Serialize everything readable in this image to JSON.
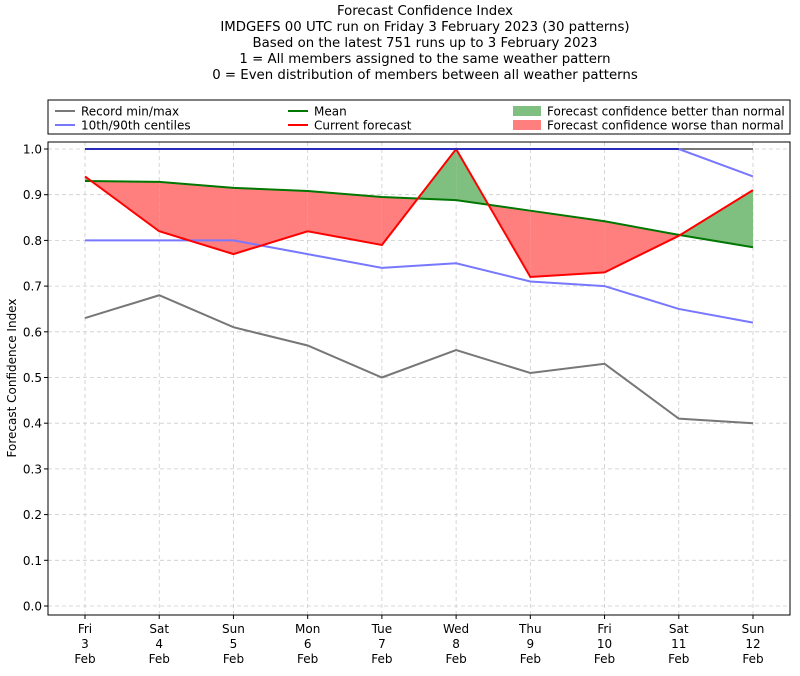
{
  "chart_data": {
    "type": "line",
    "title_lines": [
      "Forecast Confidence Index",
      "IMDGEFS 00 UTC run on Friday 3 February 2023 (30 patterns)",
      "Based on the latest 751 runs up to 3 February 2023",
      "1 = All members assigned to the same weather pattern",
      "0 = Even distribution of members between all weather patterns"
    ],
    "xlabel": "",
    "ylabel": "Forecast Confidence Index",
    "ylim": [
      0,
      1
    ],
    "yticks": [
      "0.0",
      "0.1",
      "0.2",
      "0.3",
      "0.4",
      "0.5",
      "0.6",
      "0.7",
      "0.8",
      "0.9",
      "1.0"
    ],
    "grid": true,
    "legend_position": "top",
    "categories": [
      {
        "day": "Fri",
        "date": "3",
        "month": "Feb"
      },
      {
        "day": "Sat",
        "date": "4",
        "month": "Feb"
      },
      {
        "day": "Sun",
        "date": "5",
        "month": "Feb"
      },
      {
        "day": "Mon",
        "date": "6",
        "month": "Feb"
      },
      {
        "day": "Tue",
        "date": "7",
        "month": "Feb"
      },
      {
        "day": "Wed",
        "date": "8",
        "month": "Feb"
      },
      {
        "day": "Thu",
        "date": "9",
        "month": "Feb"
      },
      {
        "day": "Fri",
        "date": "10",
        "month": "Feb"
      },
      {
        "day": "Sat",
        "date": "11",
        "month": "Feb"
      },
      {
        "day": "Sun",
        "date": "12",
        "month": "Feb"
      }
    ],
    "series": [
      {
        "name": "Record min",
        "role": "record-min",
        "color": "#777777",
        "values": [
          0.63,
          0.68,
          0.61,
          0.57,
          0.5,
          0.56,
          0.51,
          0.53,
          0.41,
          0.4
        ]
      },
      {
        "name": "Record max",
        "role": "record-max",
        "color": "#777777",
        "values": [
          1.0,
          1.0,
          1.0,
          1.0,
          1.0,
          1.0,
          1.0,
          1.0,
          1.0,
          1.0
        ]
      },
      {
        "name": "10th centile",
        "role": "p10",
        "color": "#7777ff",
        "values": [
          0.8,
          0.8,
          0.8,
          0.77,
          0.74,
          0.75,
          0.71,
          0.7,
          0.65,
          0.62
        ]
      },
      {
        "name": "90th centile",
        "role": "p90",
        "color": "#7777ff",
        "values": [
          1.0,
          1.0,
          1.0,
          1.0,
          1.0,
          1.0,
          1.0,
          1.0,
          1.0,
          0.94
        ]
      },
      {
        "name": "Mean",
        "role": "mean",
        "color": "#007700",
        "values": [
          0.93,
          0.928,
          0.915,
          0.908,
          0.895,
          0.888,
          0.865,
          0.842,
          0.812,
          0.785
        ]
      },
      {
        "name": "Current forecast",
        "role": "current",
        "color": "#ff0000",
        "values": [
          0.94,
          0.82,
          0.77,
          0.82,
          0.79,
          1.0,
          0.72,
          0.73,
          0.81,
          0.91
        ]
      }
    ],
    "legend": [
      {
        "label": "Record min/max",
        "kind": "line",
        "color": "#777777"
      },
      {
        "label": "10th/90th centiles",
        "kind": "line",
        "color": "#7777ff"
      },
      {
        "label": "Mean",
        "kind": "line",
        "color": "#007700"
      },
      {
        "label": "Current forecast",
        "kind": "line",
        "color": "#ff0000"
      },
      {
        "label": "Forecast confidence better than normal",
        "kind": "patch",
        "color": "#7fbf7f"
      },
      {
        "label": "Forecast confidence worse than normal",
        "kind": "patch",
        "color": "#ff7f7f"
      }
    ],
    "fill_colors": {
      "better": "#7fbf7f",
      "worse": "#ff7f7f"
    }
  }
}
